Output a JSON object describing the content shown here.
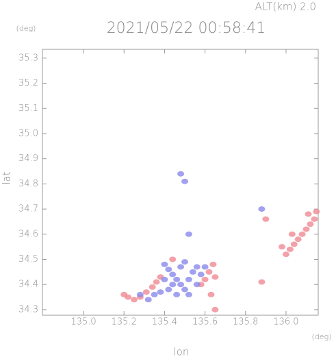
{
  "chart_data": {
    "type": "scatter",
    "title": "2021/05/22 00:58:41",
    "altitude_label": "ALT(km) 2.0",
    "ylabel": "lat",
    "ylabel_unit": "(deg)",
    "xlabel": "lon",
    "xlabel_unit": "(deg)",
    "xlim": [
      134.797,
      136.159
    ],
    "ylim": [
      34.278,
      35.335
    ],
    "xticks": [
      {
        "value": 135,
        "label": "135.0"
      },
      135.2,
      135.4,
      135.6,
      135.8,
      {
        "value": 136,
        "label": "136.0"
      }
    ],
    "yticks": [
      34.3,
      34.4,
      34.5,
      34.6,
      34.7,
      34.8,
      34.9,
      {
        "value": 35,
        "label": "35.0"
      },
      35.1,
      35.2,
      35.3
    ],
    "series": [
      {
        "color": "#f08a94",
        "x": [
          136.0,
          136.02,
          136.04,
          136.06,
          136.08,
          136.1,
          136.12,
          136.14,
          136.15,
          136.11,
          136.03,
          135.98,
          135.9,
          135.88,
          135.2,
          135.22,
          135.25,
          135.28,
          135.31,
          135.34,
          135.36,
          135.38,
          135.6,
          135.62,
          135.64,
          135.65,
          135.63,
          135.65,
          135.58,
          135.44
        ],
        "values": [
          34.52,
          34.54,
          34.56,
          34.58,
          34.6,
          34.62,
          34.64,
          34.66,
          34.69,
          34.68,
          34.6,
          34.55,
          34.66,
          34.41,
          34.36,
          34.35,
          34.34,
          34.35,
          34.37,
          34.39,
          34.41,
          34.43,
          34.42,
          34.45,
          34.48,
          34.43,
          34.36,
          34.3,
          34.4,
          34.5
        ]
      },
      {
        "color": "#8a8aec",
        "x": [
          135.4,
          135.42,
          135.44,
          135.46,
          135.48,
          135.5,
          135.52,
          135.54,
          135.56,
          135.58,
          135.48,
          135.5,
          135.44,
          135.42,
          135.46,
          135.38,
          135.35,
          135.32,
          135.28,
          135.52,
          135.56,
          135.6,
          135.5,
          135.48,
          135.52,
          135.88,
          135.4
        ],
        "values": [
          34.48,
          34.46,
          34.44,
          34.42,
          34.4,
          34.38,
          34.42,
          34.45,
          34.47,
          34.44,
          34.47,
          34.49,
          34.4,
          34.38,
          34.36,
          34.37,
          34.36,
          34.34,
          34.36,
          34.36,
          34.4,
          34.47,
          34.81,
          34.84,
          34.6,
          34.7,
          34.42
        ]
      }
    ]
  }
}
